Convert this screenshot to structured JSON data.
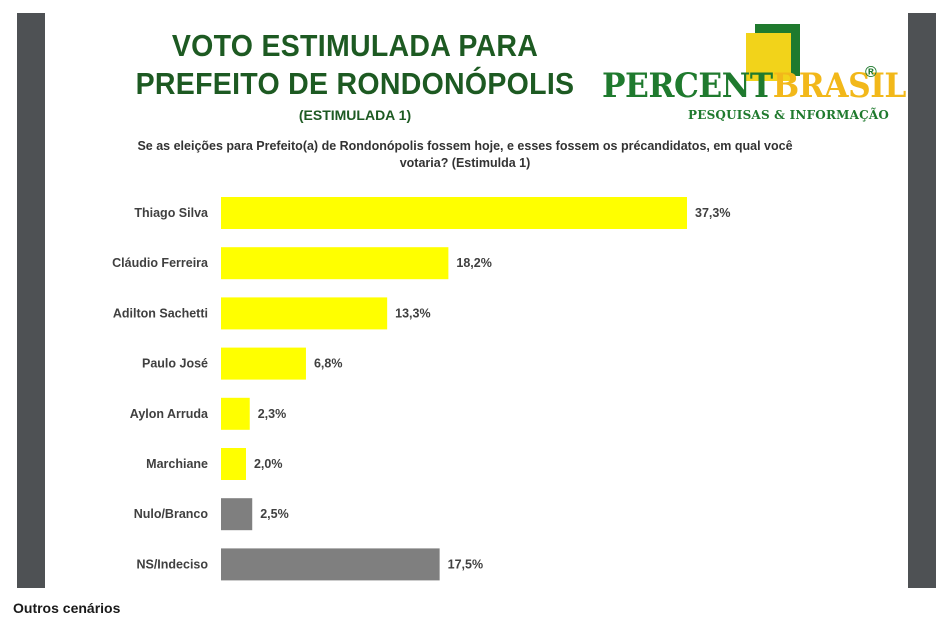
{
  "header": {
    "title_line1": "VOTO ESTIMULADA PARA",
    "title_line2": "PREFEITO DE  RONDONÓPOLIS",
    "subtitle": "(ESTIMULADA 1)",
    "question": "Se as eleições para Prefeito(a) de Rondonópolis fossem hoje, e esses fossem os précandidatos, em qual você votaria? (Estimulda 1)"
  },
  "logo": {
    "word_part1": "PERCENT",
    "word_part2": "BRASIL",
    "registered": "®",
    "tagline": "PESQUISAS & INFORMAÇÃO"
  },
  "footer": {
    "text": "Outros cenários"
  },
  "colors": {
    "candidate_bar": "#ffff00",
    "other_bar": "#7f7f7f",
    "title_green": "#1d5a22",
    "frame_gray": "#4e5154"
  },
  "chart_data": {
    "type": "bar",
    "orientation": "horizontal",
    "categories": [
      "Thiago Silva",
      "Cláudio Ferreira",
      "Adilton Sachetti",
      "Paulo José",
      "Aylon Arruda",
      "Marchiane",
      "Nulo/Branco",
      "NS/Indeciso"
    ],
    "values": [
      37.3,
      18.2,
      13.3,
      6.8,
      2.3,
      2.0,
      2.5,
      17.5
    ],
    "value_labels": [
      "37,3%",
      "18,2%",
      "13,3%",
      "6,8%",
      "2,3%",
      "2,0%",
      "2,5%",
      "17,5%"
    ],
    "bar_colors": [
      "#ffff00",
      "#ffff00",
      "#ffff00",
      "#ffff00",
      "#ffff00",
      "#ffff00",
      "#7f7f7f",
      "#7f7f7f"
    ],
    "xlim": [
      0,
      40
    ],
    "grid": false,
    "legend": "none"
  }
}
